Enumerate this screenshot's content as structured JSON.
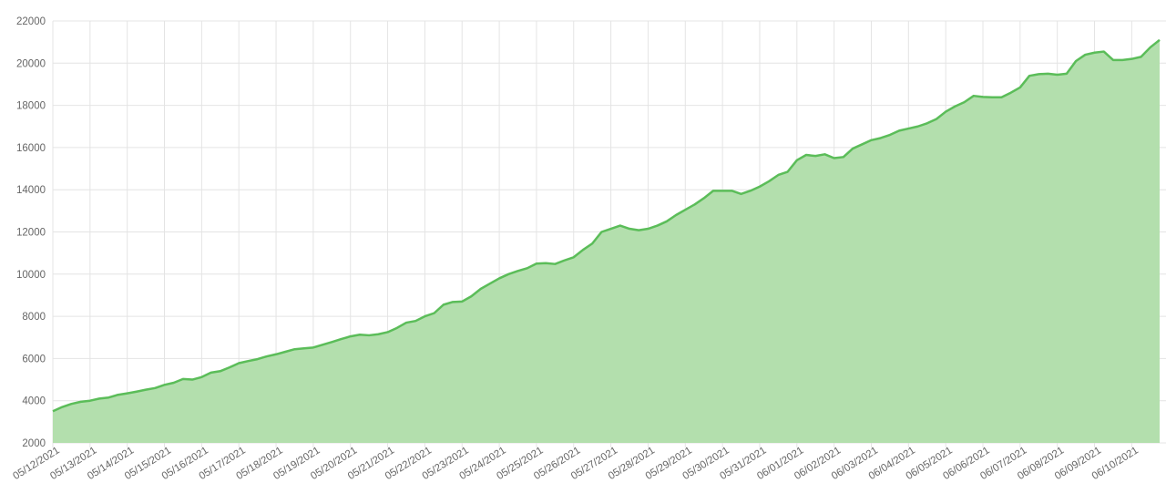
{
  "chart_data": {
    "type": "area",
    "categories": [
      "05/12/2021",
      null,
      null,
      null,
      "05/13/2021",
      null,
      null,
      null,
      "05/14/2021",
      null,
      null,
      null,
      "05/15/2021",
      null,
      null,
      null,
      "05/16/2021",
      null,
      null,
      null,
      "05/17/2021",
      null,
      null,
      null,
      "05/18/2021",
      null,
      null,
      null,
      "05/19/2021",
      null,
      null,
      null,
      "05/20/2021",
      null,
      null,
      null,
      "05/21/2021",
      null,
      null,
      null,
      "05/22/2021",
      null,
      null,
      null,
      "05/23/2021",
      null,
      null,
      null,
      "05/24/2021",
      null,
      null,
      null,
      "05/25/2021",
      null,
      null,
      null,
      "05/26/2021",
      null,
      null,
      null,
      "05/27/2021",
      null,
      null,
      null,
      "05/28/2021",
      null,
      null,
      null,
      "05/29/2021",
      null,
      null,
      null,
      "05/30/2021",
      null,
      null,
      null,
      "05/31/2021",
      null,
      null,
      null,
      "06/01/2021",
      null,
      null,
      null,
      "06/02/2021",
      null,
      null,
      null,
      "06/03/2021",
      null,
      null,
      null,
      "06/04/2021",
      null,
      null,
      null,
      "06/05/2021",
      null,
      null,
      null,
      "06/06/2021",
      null,
      null,
      null,
      "06/07/2021",
      null,
      null,
      null,
      "06/08/2021",
      null,
      null,
      null,
      "06/09/2021",
      null,
      null,
      null,
      "06/10/2021",
      null,
      null,
      null
    ],
    "series": [
      {
        "color": "#5bbd59",
        "fill": "#b3dfad",
        "values": [
          3500,
          3700,
          3850,
          3950,
          4000,
          4100,
          4150,
          4280,
          4350,
          4430,
          4520,
          4600,
          4750,
          4850,
          5030,
          5000,
          5120,
          5330,
          5400,
          5580,
          5780,
          5880,
          5970,
          6100,
          6200,
          6320,
          6440,
          6480,
          6520,
          6650,
          6780,
          6920,
          7050,
          7130,
          7100,
          7150,
          7250,
          7450,
          7700,
          7780,
          8000,
          8150,
          8550,
          8680,
          8700,
          8950,
          9300,
          9550,
          9800,
          10000,
          10150,
          10280,
          10500,
          10520,
          10480,
          10650,
          10800,
          11150,
          11450,
          12000,
          12150,
          12300,
          12150,
          12080,
          12150,
          12300,
          12500,
          12800,
          13050,
          13300,
          13600,
          13950,
          13950,
          13950,
          13800,
          13950,
          14150,
          14400,
          14700,
          14850,
          15400,
          15650,
          15600,
          15680,
          15500,
          15550,
          15950,
          16150,
          16350,
          16450,
          16600,
          16800,
          16900,
          17000,
          17150,
          17350,
          17700,
          17950,
          18150,
          18450,
          18400,
          18380,
          18380,
          18600,
          18850,
          19400,
          19480,
          19500,
          19450,
          19500,
          20100,
          20400,
          20500,
          20550,
          20150,
          20150,
          20200,
          20300,
          20750,
          21100
        ]
      }
    ],
    "ylim": [
      2000,
      22000
    ],
    "yticks": [
      2000,
      4000,
      6000,
      8000,
      10000,
      12000,
      14000,
      16000,
      18000,
      20000,
      22000
    ],
    "grid": true
  }
}
